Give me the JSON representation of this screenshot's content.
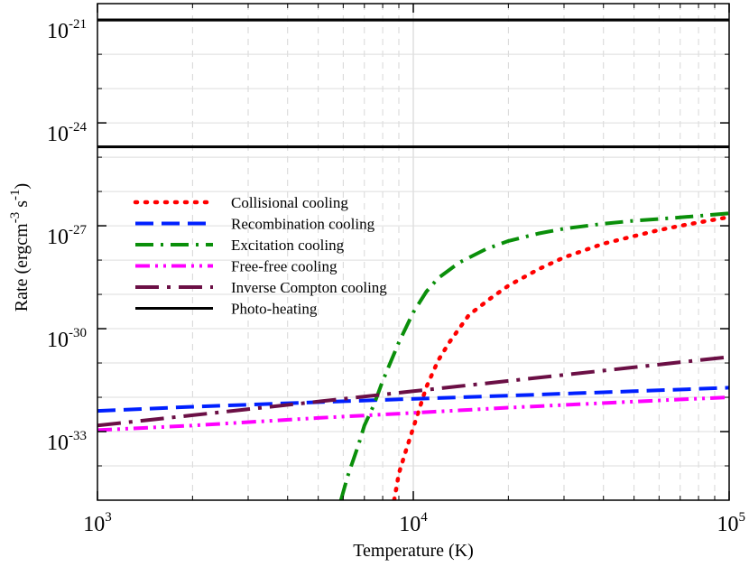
{
  "chart_data": {
    "type": "line",
    "xscale": "log",
    "yscale": "log",
    "xlim": [
      1000,
      100000
    ],
    "ylim": [
      1e-35,
      3e-21
    ],
    "xlabel": "Temperature (K)",
    "ylabel": "Rate (ergcm⁻³s⁻¹)",
    "ylabel_parts": {
      "main": "Rate (ergcm",
      "sup1": "-3",
      "mid": " s",
      "sup2": "-1",
      "end": ")"
    },
    "grid": true,
    "legend_position": "upper-left",
    "x_ticks": [
      {
        "value": 1000,
        "base": "10",
        "exp": "3"
      },
      {
        "value": 10000,
        "base": "10",
        "exp": "4"
      },
      {
        "value": 100000,
        "base": "10",
        "exp": "5"
      }
    ],
    "y_ticks": [
      {
        "value": 1e-21,
        "base": "10",
        "exp": "-21"
      },
      {
        "value": 1e-24,
        "base": "10",
        "exp": "-24"
      },
      {
        "value": 1e-27,
        "base": "10",
        "exp": "-27"
      },
      {
        "value": 1e-30,
        "base": "10",
        "exp": "-30"
      },
      {
        "value": 1e-33,
        "base": "10",
        "exp": "-33"
      }
    ],
    "reference_lines": [
      {
        "name": "photo-heating-upper",
        "y": 1e-21
      },
      {
        "name": "photo-heating-lower",
        "y": 2e-25
      }
    ],
    "series": [
      {
        "name": "Collisional cooling",
        "color": "#ff0000",
        "dash": "dotted",
        "x": [
          8700,
          9000,
          9500,
          10000,
          11000,
          12000,
          13000,
          15000,
          17500,
          20000,
          25000,
          30000,
          40000,
          50000,
          60000,
          70000,
          80000,
          100000
        ],
        "y": [
          1e-35,
          6e-35,
          3e-34,
          1.3e-33,
          2e-32,
          1.2e-31,
          4e-31,
          2.5e-30,
          7.5e-30,
          1.8e-29,
          5.5e-29,
          1.2e-28,
          3e-28,
          5e-28,
          7.5e-28,
          1e-27,
          1.25e-27,
          1.8e-27
        ]
      },
      {
        "name": "Recombination cooling",
        "color": "#0020ff",
        "dash": "dashed",
        "x": [
          1000,
          2000,
          5000,
          10000,
          20000,
          50000,
          100000
        ],
        "y": [
          4e-33,
          5.3e-33,
          7.2e-33,
          9e-33,
          1.12e-32,
          1.5e-32,
          1.9e-32
        ]
      },
      {
        "name": "Excitation cooling",
        "color": "#0a8f0a",
        "dash": "dashdot",
        "x": [
          5900,
          6200,
          6700,
          7000,
          7500,
          8000,
          9000,
          10000,
          11000,
          12000,
          14000,
          17000,
          20000,
          25000,
          30000,
          40000,
          50000,
          70000,
          100000
        ],
        "y": [
          1e-35,
          5e-35,
          4e-34,
          1.5e-33,
          6e-33,
          3e-32,
          4e-31,
          3e-30,
          1.2e-29,
          3e-29,
          8.5e-29,
          2.1e-28,
          3.6e-28,
          6e-28,
          8.2e-28,
          1.15e-27,
          1.4e-27,
          1.75e-27,
          2.3e-27
        ]
      },
      {
        "name": "Free-free cooling",
        "color": "#ff00ff",
        "dash": "dashdotdot",
        "x": [
          1000,
          2000,
          5000,
          10000,
          20000,
          50000,
          100000
        ],
        "y": [
          1.1e-33,
          1.5e-33,
          2.5e-33,
          3.5e-33,
          5e-33,
          7.5e-33,
          1e-32
        ]
      },
      {
        "name": "Inverse Compton cooling",
        "color": "#6b0f45",
        "dash": "longdashdot",
        "x": [
          1000,
          2000,
          5000,
          10000,
          20000,
          50000,
          100000
        ],
        "y": [
          1.5e-33,
          3e-33,
          7.5e-33,
          1.5e-32,
          3e-32,
          7.5e-32,
          1.5e-31
        ]
      },
      {
        "name": "Photo-heating",
        "color": "#000000",
        "dash": "solid",
        "x": [
          1000,
          100000
        ],
        "y": [
          1e-21,
          1e-21
        ]
      }
    ]
  }
}
